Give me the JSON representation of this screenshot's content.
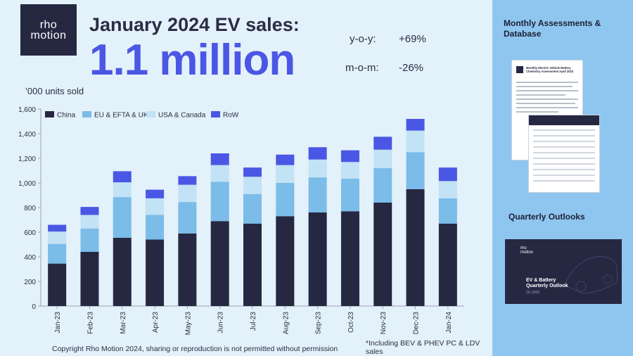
{
  "logo": {
    "line1": "rho",
    "line2": "motion"
  },
  "headline": "January 2024 EV sales:",
  "big_number": "1.1 million",
  "metrics": {
    "yoy_label": "y-o-y:",
    "yoy_value": "+69%",
    "mom_label": "m-o-m:",
    "mom_value": "-26%"
  },
  "units_label": "’000 units sold",
  "copyright": "Copyright Rho Motion 2024, sharing or reproduction is not permitted without permission",
  "footnote": "*Including BEV & PHEV PC & LDV sales",
  "side": {
    "heading1": "Monthly Assessments & Database",
    "heading2": "Quarterly Outlooks",
    "report_title": "Monthly Electric Vehicle Battery Chemistry Assessment April 2023",
    "outlook_logo_1": "rho",
    "outlook_logo_2": "motion",
    "outlook_title_1": "EV & Battery",
    "outlook_title_2": "Quarterly Outlook",
    "outlook_sub": "Q1 2023"
  },
  "colors": {
    "china": "#262842",
    "eu": "#7bbce9",
    "usa": "#c2e2f5",
    "row": "#4a57e4",
    "accent": "#4a57e4"
  },
  "chart_data": {
    "type": "bar",
    "stacked": true,
    "title": "",
    "ylabel": "’000 units sold",
    "ylim": [
      0,
      1600
    ],
    "yticks": [
      0,
      200,
      400,
      600,
      800,
      1000,
      1200,
      1400,
      1600
    ],
    "ytick_labels": [
      "0",
      "200",
      "400",
      "600",
      "800",
      "1,000",
      "1,200",
      "1,400",
      "1,600"
    ],
    "legend_position": "top-left",
    "categories": [
      "Jan-23",
      "Feb-23",
      "Mar-23",
      "Apr-23",
      "May-23",
      "Jun-23",
      "Jul-23",
      "Aug-23",
      "Sep-23",
      "Oct-23",
      "Nov-23",
      "Dec-23",
      "Jan-24"
    ],
    "series": [
      {
        "name": "China",
        "color": "#262842",
        "values": [
          345,
          440,
          555,
          540,
          590,
          690,
          670,
          730,
          760,
          770,
          840,
          950,
          670
        ]
      },
      {
        "name": "EU & EFTA & UK",
        "color": "#7bbce9",
        "values": [
          160,
          190,
          330,
          200,
          255,
          320,
          240,
          270,
          285,
          265,
          280,
          300,
          205
        ]
      },
      {
        "name": "USA & Canada",
        "color": "#c2e2f5",
        "values": [
          100,
          110,
          120,
          135,
          140,
          135,
          140,
          145,
          145,
          135,
          150,
          175,
          140
        ]
      },
      {
        "name": "RoW",
        "color": "#4a57e4",
        "values": [
          55,
          65,
          90,
          70,
          70,
          95,
          75,
          85,
          100,
          95,
          105,
          95,
          110
        ]
      }
    ]
  }
}
